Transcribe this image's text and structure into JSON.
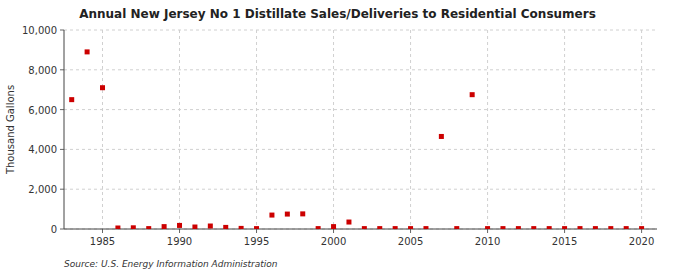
{
  "chart_data": {
    "type": "scatter",
    "title": "Annual New Jersey No 1 Distillate Sales/Deliveries to Residential Consumers",
    "y_label": "Thousand Gallons",
    "source": "Source: U.S. Energy Information Administration",
    "x": [
      1983,
      1984,
      1985,
      1986,
      1987,
      1988,
      1989,
      1990,
      1991,
      1992,
      1993,
      1994,
      1995,
      1996,
      1997,
      1998,
      1999,
      2000,
      2001,
      2002,
      2003,
      2004,
      2005,
      2006,
      2007,
      2008,
      2009,
      2010,
      2011,
      2012,
      2013,
      2014,
      2015,
      2016,
      2017,
      2018,
      2019,
      2020
    ],
    "values": [
      6500,
      8900,
      7100,
      50,
      60,
      20,
      120,
      180,
      100,
      150,
      80,
      30,
      20,
      700,
      750,
      760,
      20,
      120,
      350,
      20,
      20,
      20,
      20,
      20,
      4650,
      20,
      6750,
      20,
      20,
      20,
      20,
      20,
      20,
      20,
      20,
      20,
      20,
      20
    ],
    "color": "#cc0000",
    "marker": "square",
    "xlim": [
      1982.5,
      2021
    ],
    "ylim": [
      0,
      10000
    ],
    "xticks": [
      1985,
      1990,
      1995,
      2000,
      2005,
      2010,
      2015,
      2020
    ],
    "yticks": [
      0,
      {
        "value": 2000,
        "label": "2,000"
      },
      {
        "value": 4000,
        "label": "4,000"
      },
      {
        "value": 6000,
        "label": "6,000"
      },
      {
        "value": 8000,
        "label": "8,000"
      },
      {
        "value": 10000,
        "label": "10,000"
      }
    ],
    "grid": true
  }
}
